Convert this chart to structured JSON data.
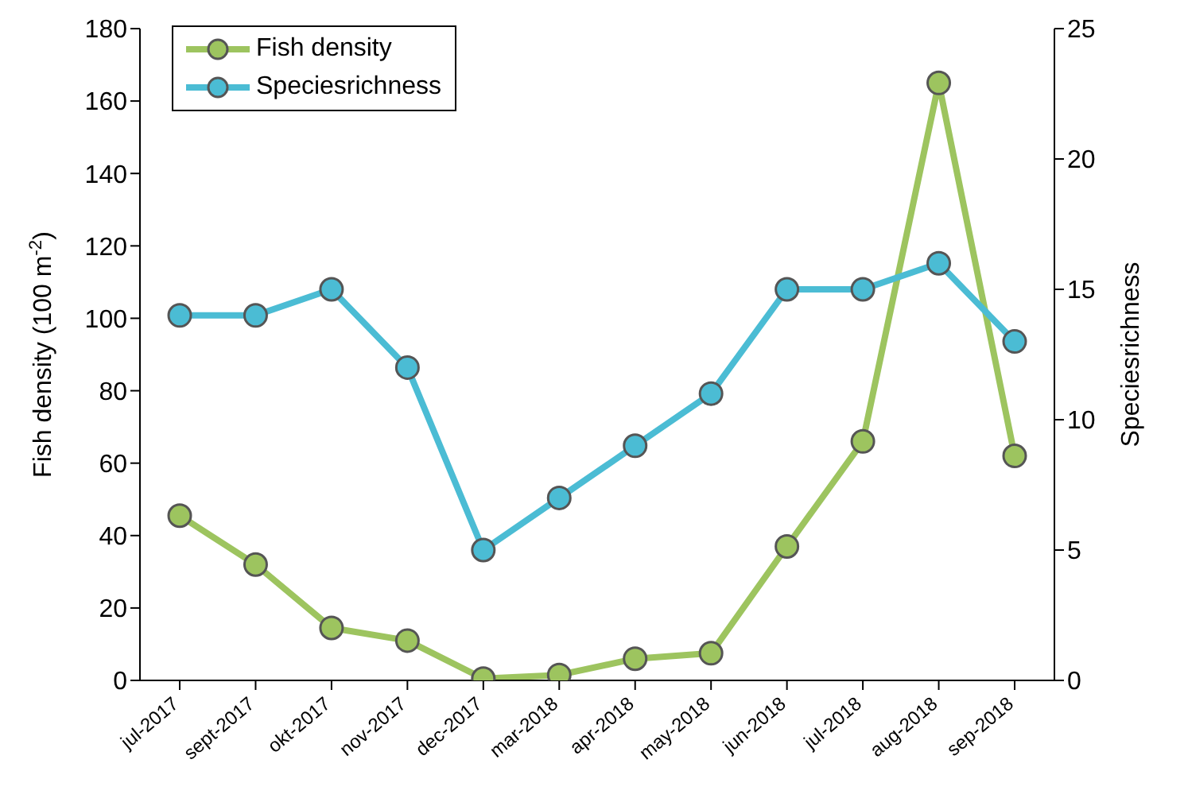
{
  "chart_data": {
    "type": "line",
    "categories": [
      "jul-2017",
      "sept-2017",
      "okt-2017",
      "nov-2017",
      "dec-2017",
      "mar-2018",
      "apr-2018",
      "may-2018",
      "jun-2018",
      "jul-2018",
      "aug-2018",
      "sep-2018"
    ],
    "series": [
      {
        "name": "Fish density",
        "color": "#9dc45f",
        "values": [
          45.5,
          32,
          14.5,
          11,
          0.5,
          1.5,
          6,
          7.5,
          37,
          66,
          165,
          62
        ]
      },
      {
        "name": "Speciesrichness",
        "color": "#4bbcd4",
        "axis": "y2",
        "values": [
          14,
          14,
          15,
          12,
          5,
          7,
          9,
          11,
          15,
          15,
          16,
          13
        ]
      }
    ],
    "ylabel": "Fish density (100 m$^{-2}$)",
    "y2label": "Speciesrichness",
    "ylim": [
      0,
      180
    ],
    "yticks": [
      0,
      20,
      40,
      60,
      80,
      100,
      120,
      140,
      160,
      180
    ],
    "y2lim": [
      0,
      25
    ],
    "y2ticks": [
      0,
      5,
      10,
      15,
      20,
      25
    ],
    "grid": false,
    "legend": "top left",
    "marker": "circle",
    "line_style": "solid"
  }
}
